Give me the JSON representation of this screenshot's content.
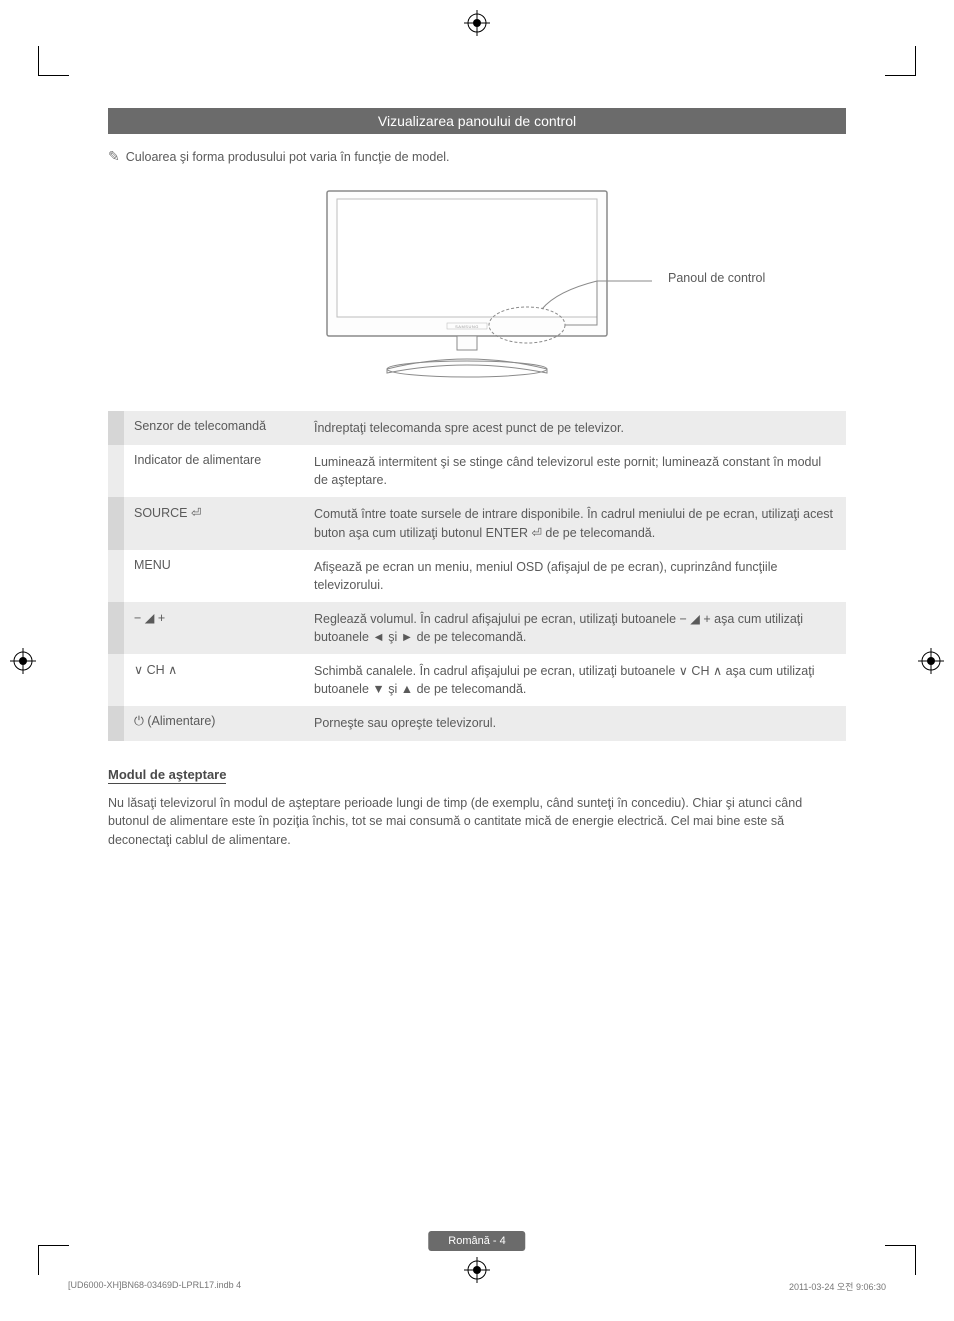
{
  "title_bar": "Vizualizarea panoului de control",
  "note_line": "Culoarea şi forma produsului pot varia în funcţie de model.",
  "panel_label": "Panoul de control",
  "rows": [
    {
      "key_text": "Senzor de telecomandă",
      "val_text": "Îndreptaţi telecomanda spre acest punct de pe televizor."
    },
    {
      "key_text": "Indicator de alimentare",
      "val_text": "Luminează intermitent şi se stinge când televizorul este pornit; luminează constant în modul de aşteptare."
    },
    {
      "key_html": "SOURCE <span class='btn-sym'>⏎</span>",
      "val_text": "Comută între toate sursele de intrare disponibile. În cadrul meniului de pe ecran, utilizaţi acest buton aşa cum utilizaţi butonul ENTER ⏎ de pe telecomandă."
    },
    {
      "key_text": "MENU",
      "val_text": "Afişează pe ecran un meniu, meniul OSD (afişajul de pe ecran), cuprinzând funcţiile televizorului."
    },
    {
      "key_html": "<span class='btn-sym'>− ◢ +</span>",
      "val_text": "Reglează volumul. În cadrul afişajului pe ecran, utilizaţi butoanele − ◢ + aşa cum utilizaţi butoanele ◄ şi ► de pe telecomandă."
    },
    {
      "key_html": "<span class='btn-sym'>∨ CH ∧</span>",
      "val_text": "Schimbă canalele. În cadrul afişajului pe ecran, utilizaţi butoanele ∨ CH ∧ aşa cum utilizaţi butoanele ▼ şi ▲ de pe telecomandă."
    },
    {
      "key_html": "⏻ (Alimentare)",
      "val_text": "Porneşte sau opreşte televizorul."
    }
  ],
  "standby_heading": "Modul de aşteptare",
  "standby_text": "Nu lăsaţi televizorul în modul de aşteptare perioade lungi de timp (de exemplu, când sunteţi în concediu). Chiar şi atunci când butonul de alimentare este în poziţia închis, tot se mai consumă o cantitate mică de energie electrică. Cel mai bine este să deconectaţi cablul de alimentare.",
  "footer_badge": "Română - 4",
  "print_left": "[UD6000-XH]BN68-03469D-LPRL17.indb   4",
  "print_right": "2011-03-24   오전 9:06:30"
}
